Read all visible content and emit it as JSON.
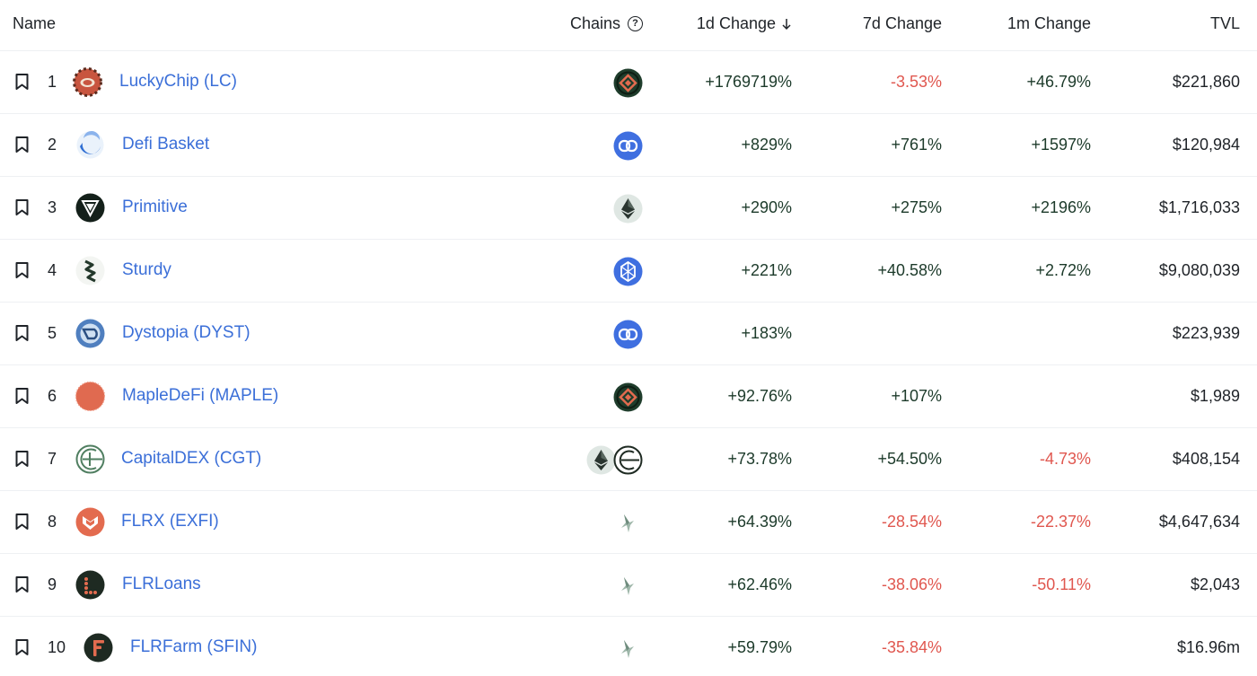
{
  "header": {
    "name": "Name",
    "chains": "Chains",
    "change_1d": "1d Change",
    "change_7d": "7d Change",
    "change_1m": "1m Change",
    "tvl": "TVL"
  },
  "colors": {
    "link": "#3b6fd8",
    "positive": "#1c3a2a",
    "negative": "#e0574f"
  },
  "rows": [
    {
      "rank": "1",
      "name": "LuckyChip (LC)",
      "logo": "luckychip-logo",
      "chains": [
        "bnb-chain-icon"
      ],
      "d1": "+1769719%",
      "d7": "-3.53%",
      "m1": "+46.79%",
      "tvl": "$221,860"
    },
    {
      "rank": "2",
      "name": "Defi Basket",
      "logo": "defi-basket-logo",
      "chains": [
        "polygon-chain-icon"
      ],
      "d1": "+829%",
      "d7": "+761%",
      "m1": "+1597%",
      "tvl": "$120,984"
    },
    {
      "rank": "3",
      "name": "Primitive",
      "logo": "primitive-logo",
      "chains": [
        "ethereum-chain-icon"
      ],
      "d1": "+290%",
      "d7": "+275%",
      "m1": "+2196%",
      "tvl": "$1,716,033"
    },
    {
      "rank": "4",
      "name": "Sturdy",
      "logo": "sturdy-logo",
      "chains": [
        "fantom-chain-icon"
      ],
      "d1": "+221%",
      "d7": "+40.58%",
      "m1": "+2.72%",
      "tvl": "$9,080,039"
    },
    {
      "rank": "5",
      "name": "Dystopia (DYST)",
      "logo": "dystopia-logo",
      "chains": [
        "polygon-chain-icon"
      ],
      "d1": "+183%",
      "d7": "",
      "m1": "",
      "tvl": "$223,939"
    },
    {
      "rank": "6",
      "name": "MapleDeFi (MAPLE)",
      "logo": "mapledefi-logo",
      "chains": [
        "bnb-chain-icon"
      ],
      "d1": "+92.76%",
      "d7": "+107%",
      "m1": "",
      "tvl": "$1,989"
    },
    {
      "rank": "7",
      "name": "CapitalDEX (CGT)",
      "logo": "capitaldex-logo",
      "chains": [
        "ethereum-chain-icon",
        "capitaldex-chain-icon"
      ],
      "d1": "+73.78%",
      "d7": "+54.50%",
      "m1": "-4.73%",
      "tvl": "$408,154"
    },
    {
      "rank": "8",
      "name": "FLRX (EXFI)",
      "logo": "flrx-logo",
      "chains": [
        "songbird-chain-icon"
      ],
      "d1": "+64.39%",
      "d7": "-28.54%",
      "m1": "-22.37%",
      "tvl": "$4,647,634"
    },
    {
      "rank": "9",
      "name": "FLRLoans",
      "logo": "flrloans-logo",
      "chains": [
        "songbird-chain-icon"
      ],
      "d1": "+62.46%",
      "d7": "-38.06%",
      "m1": "-50.11%",
      "tvl": "$2,043"
    },
    {
      "rank": "10",
      "name": "FLRFarm (SFIN)",
      "logo": "flrfarm-logo",
      "chains": [
        "songbird-chain-icon"
      ],
      "d1": "+59.79%",
      "d7": "-35.84%",
      "m1": "",
      "tvl": "$16.96m"
    }
  ]
}
